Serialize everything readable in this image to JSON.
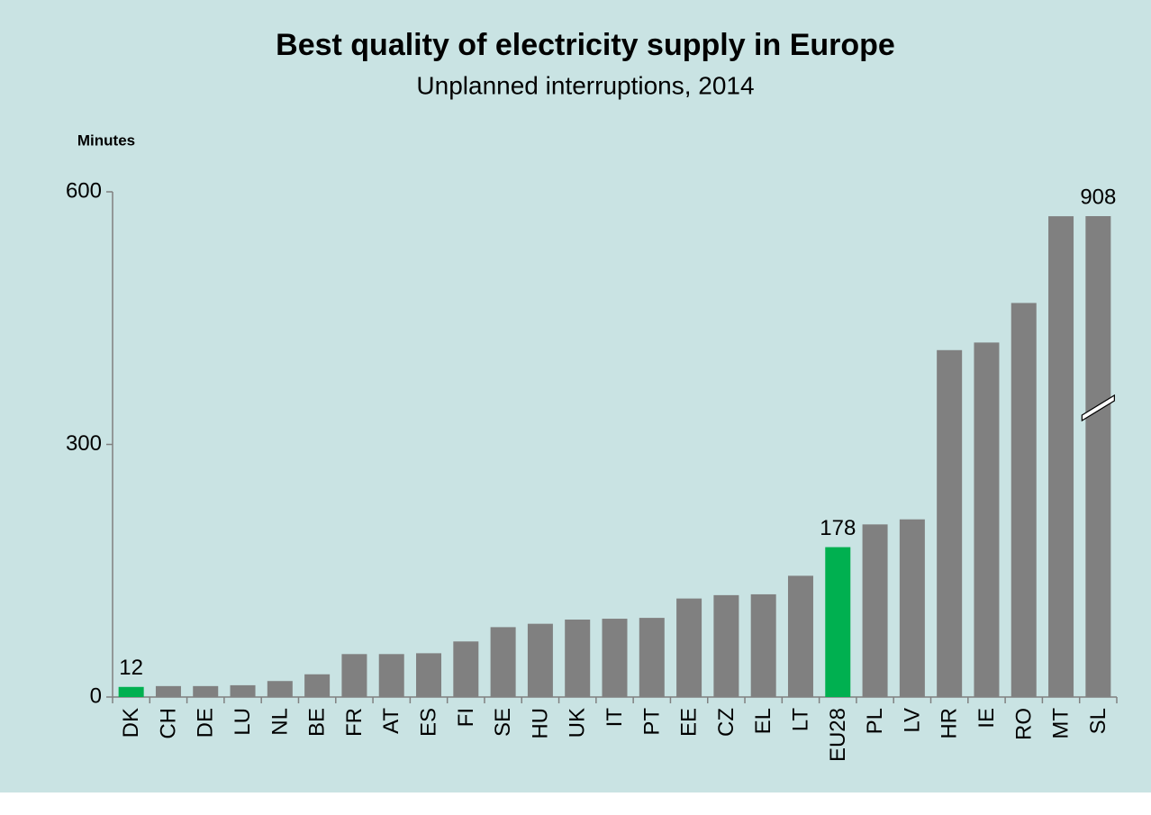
{
  "chart_data": {
    "type": "bar",
    "title": "Best quality of electricity supply in Europe",
    "subtitle": "Unplanned interruptions, 2014",
    "y_axis_label": "Minutes",
    "categories": [
      "DK",
      "CH",
      "DE",
      "LU",
      "NL",
      "BE",
      "FR",
      "AT",
      "ES",
      "FI",
      "SE",
      "HU",
      "UK",
      "IT",
      "PT",
      "EE",
      "CZ",
      "EL",
      "LT",
      "EU28",
      "PL",
      "LV",
      "HR",
      "IE",
      "RO",
      "MT",
      "SL"
    ],
    "values": [
      12,
      13,
      13,
      14,
      19,
      27,
      51,
      51,
      52,
      66,
      83,
      87,
      92,
      93,
      94,
      117,
      121,
      122,
      144,
      178,
      205,
      211,
      412,
      421,
      468,
      571,
      908
    ],
    "value_labels": [
      "12",
      null,
      null,
      null,
      null,
      null,
      null,
      null,
      null,
      null,
      null,
      null,
      null,
      null,
      null,
      null,
      null,
      null,
      null,
      "178",
      null,
      null,
      null,
      null,
      null,
      null,
      "908"
    ],
    "colors": [
      "#00b050",
      "#808080",
      "#808080",
      "#808080",
      "#808080",
      "#808080",
      "#808080",
      "#808080",
      "#808080",
      "#808080",
      "#808080",
      "#808080",
      "#808080",
      "#808080",
      "#808080",
      "#808080",
      "#808080",
      "#808080",
      "#808080",
      "#00b050",
      "#808080",
      "#808080",
      "#808080",
      "#808080",
      "#808080",
      "#808080",
      "#808080"
    ],
    "ylim": [
      0,
      600
    ],
    "yticks": [
      0,
      300,
      600
    ],
    "grid": false,
    "axis_break": true
  }
}
